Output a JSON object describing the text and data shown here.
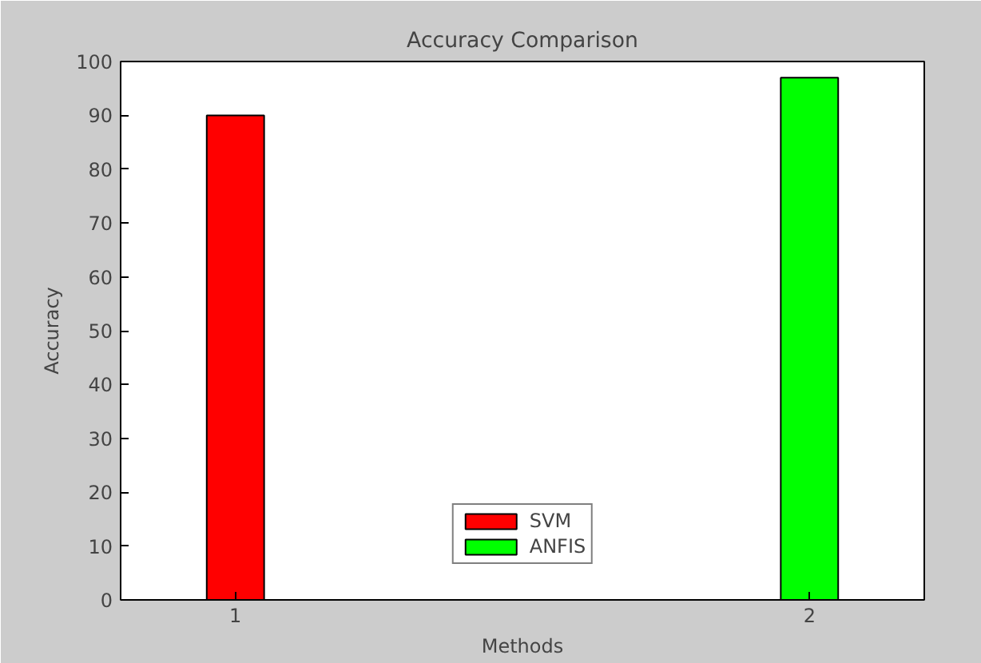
{
  "chart_data": {
    "type": "bar",
    "title": "Accuracy Comparison",
    "xlabel": "Methods",
    "ylabel": "Accuracy",
    "series": [
      {
        "name": "SVM",
        "color": "#ff0000",
        "x": [
          1
        ],
        "values": [
          90
        ]
      },
      {
        "name": "ANFIS",
        "color": "#00ff00",
        "x": [
          2
        ],
        "values": [
          97
        ]
      }
    ],
    "xlim": [
      0.8,
      2.2
    ],
    "xticks": [
      1,
      2
    ],
    "ylim": [
      0,
      100
    ],
    "yticks": [
      0,
      10,
      20,
      30,
      40,
      50,
      60,
      70,
      80,
      90,
      100
    ],
    "legend": "bottom"
  }
}
